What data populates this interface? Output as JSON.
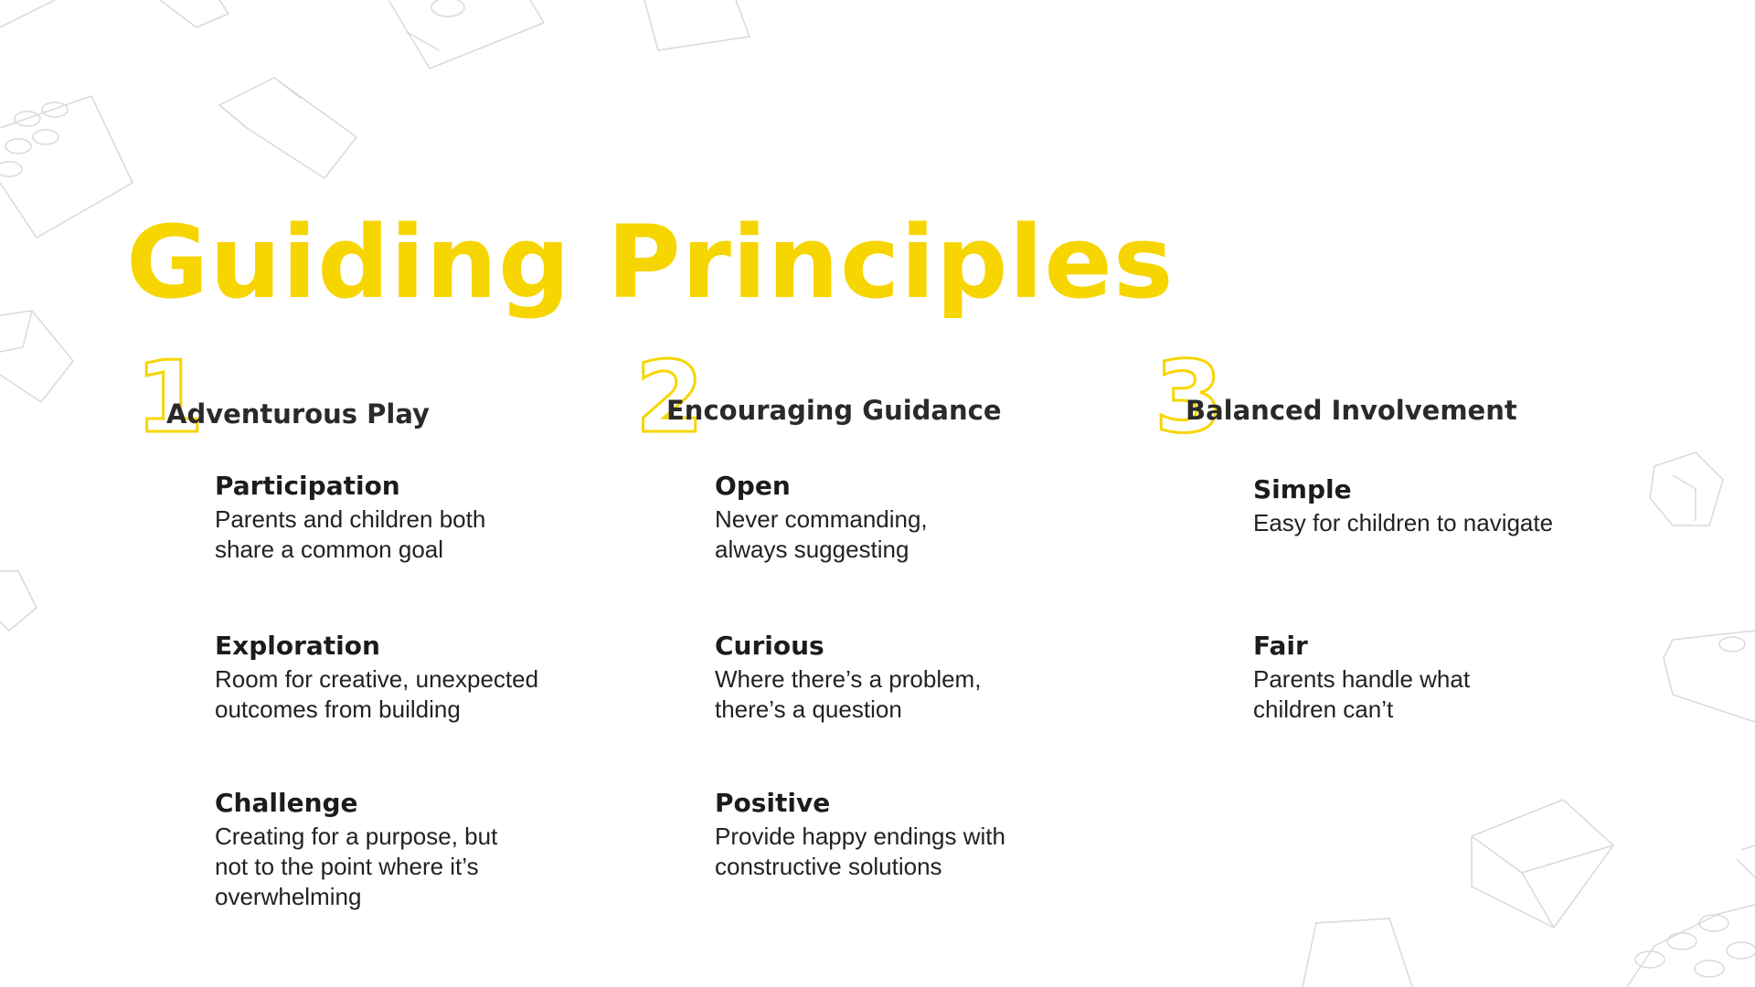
{
  "title": "Guiding Principles",
  "colors": {
    "accent": "#f7d500",
    "text": "#1f1f1f",
    "brick_outline": "#d9d9d9"
  },
  "columns": [
    {
      "number": "1",
      "title": "Adventurous Play",
      "items": [
        {
          "heading": "Participation",
          "description": "Parents and children both\nshare a common goal"
        },
        {
          "heading": "Exploration",
          "description": "Room for creative, unexpected\noutcomes from building"
        },
        {
          "heading": "Challenge",
          "description": "Creating for a purpose, but\nnot to the point where it’s\noverwhelming"
        }
      ]
    },
    {
      "number": "2",
      "title": "Encouraging Guidance",
      "items": [
        {
          "heading": "Open",
          "description": "Never commanding,\nalways suggesting"
        },
        {
          "heading": "Curious",
          "description": "Where there’s a problem,\nthere’s a question"
        },
        {
          "heading": "Positive",
          "description": "Provide happy endings with\nconstructive solutions"
        }
      ]
    },
    {
      "number": "3",
      "title": "Balanced Involvement",
      "items": [
        {
          "heading": "Simple",
          "description": "Easy for children to navigate"
        },
        {
          "heading": "Fair",
          "description": "Parents handle what\nchildren can’t"
        }
      ]
    }
  ],
  "decorations": {
    "background_icon": "lego-brick-outline-icon"
  }
}
